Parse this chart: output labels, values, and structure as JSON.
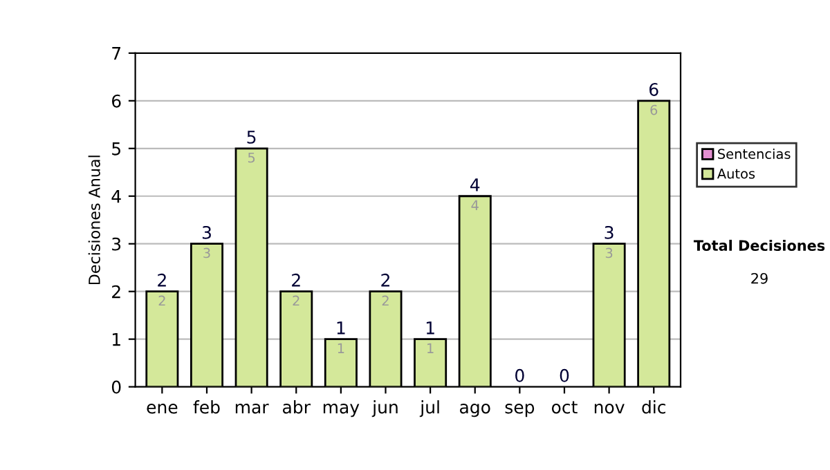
{
  "chart_data": {
    "type": "bar",
    "stacked": true,
    "ylabel": "Decisiones Anual",
    "categories": [
      "ene",
      "feb",
      "mar",
      "abr",
      "may",
      "jun",
      "jul",
      "ago",
      "sep",
      "oct",
      "nov",
      "dic"
    ],
    "series": [
      {
        "name": "Sentencias",
        "color": "#e38fd0",
        "values": [
          0,
          0,
          0,
          0,
          0,
          0,
          0,
          0,
          0,
          0,
          0,
          0
        ]
      },
      {
        "name": "Autos",
        "color": "#d4e89a",
        "values": [
          2,
          3,
          5,
          2,
          1,
          2,
          1,
          4,
          0,
          0,
          3,
          6
        ],
        "value_labels": [
          "2",
          "3",
          "5",
          "2",
          "1",
          "2",
          "1",
          "4",
          null,
          null,
          "3",
          "6"
        ]
      }
    ],
    "totals": [
      "2",
      "3",
      "5",
      "2",
      "1",
      "2",
      "1",
      "4",
      "0",
      "0",
      "3",
      "6"
    ],
    "ylim": [
      0,
      7
    ],
    "yticks": [
      0,
      1,
      2,
      3,
      4,
      5,
      6,
      7
    ],
    "grid": "y",
    "legend": "right",
    "annotations": [
      "Total Decisiones",
      "29"
    ]
  }
}
